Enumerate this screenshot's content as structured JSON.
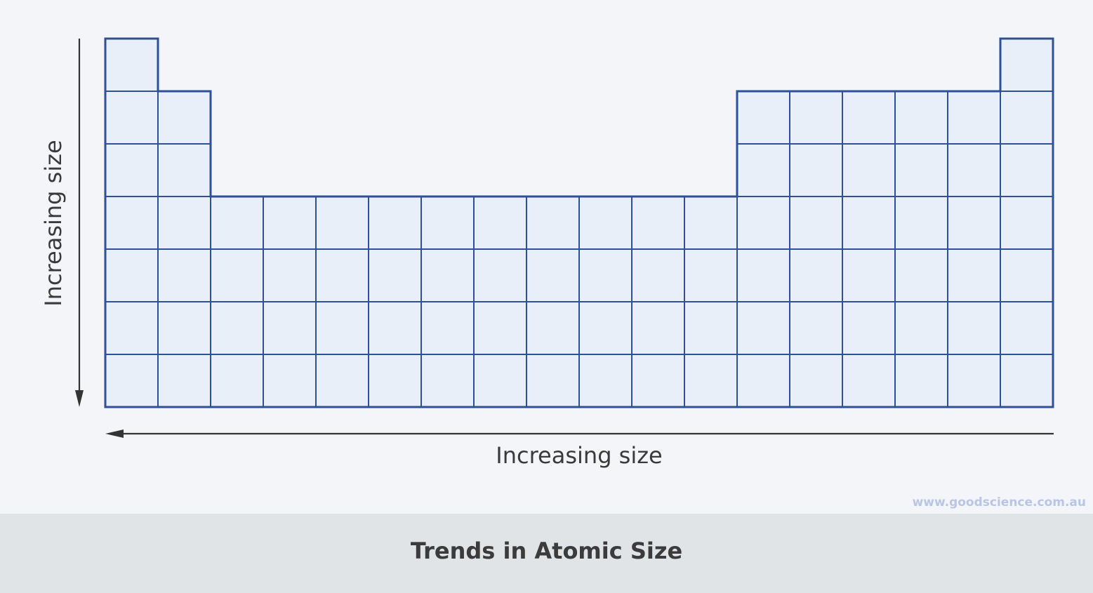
{
  "diagram": {
    "vertical_arrow_label": "Increasing size",
    "horizontal_arrow_label": "Increasing size",
    "watermark": "www.goodscience.com.au",
    "grid_color": "#2f4f96",
    "cell_fill": "#e9eff9",
    "arrow_color": "#333333",
    "table_rows": [
      [
        1,
        0,
        0,
        0,
        0,
        0,
        0,
        0,
        0,
        0,
        0,
        0,
        0,
        0,
        0,
        0,
        0,
        1
      ],
      [
        1,
        1,
        0,
        0,
        0,
        0,
        0,
        0,
        0,
        0,
        0,
        0,
        1,
        1,
        1,
        1,
        1,
        1
      ],
      [
        1,
        1,
        0,
        0,
        0,
        0,
        0,
        0,
        0,
        0,
        0,
        0,
        1,
        1,
        1,
        1,
        1,
        1
      ],
      [
        1,
        1,
        1,
        1,
        1,
        1,
        1,
        1,
        1,
        1,
        1,
        1,
        1,
        1,
        1,
        1,
        1,
        1
      ],
      [
        1,
        1,
        1,
        1,
        1,
        1,
        1,
        1,
        1,
        1,
        1,
        1,
        1,
        1,
        1,
        1,
        1,
        1
      ],
      [
        1,
        1,
        1,
        1,
        1,
        1,
        1,
        1,
        1,
        1,
        1,
        1,
        1,
        1,
        1,
        1,
        1,
        1
      ],
      [
        1,
        1,
        1,
        1,
        1,
        1,
        1,
        1,
        1,
        1,
        1,
        1,
        1,
        1,
        1,
        1,
        1,
        1
      ]
    ]
  },
  "caption": {
    "title": "Trends in Atomic Size"
  }
}
